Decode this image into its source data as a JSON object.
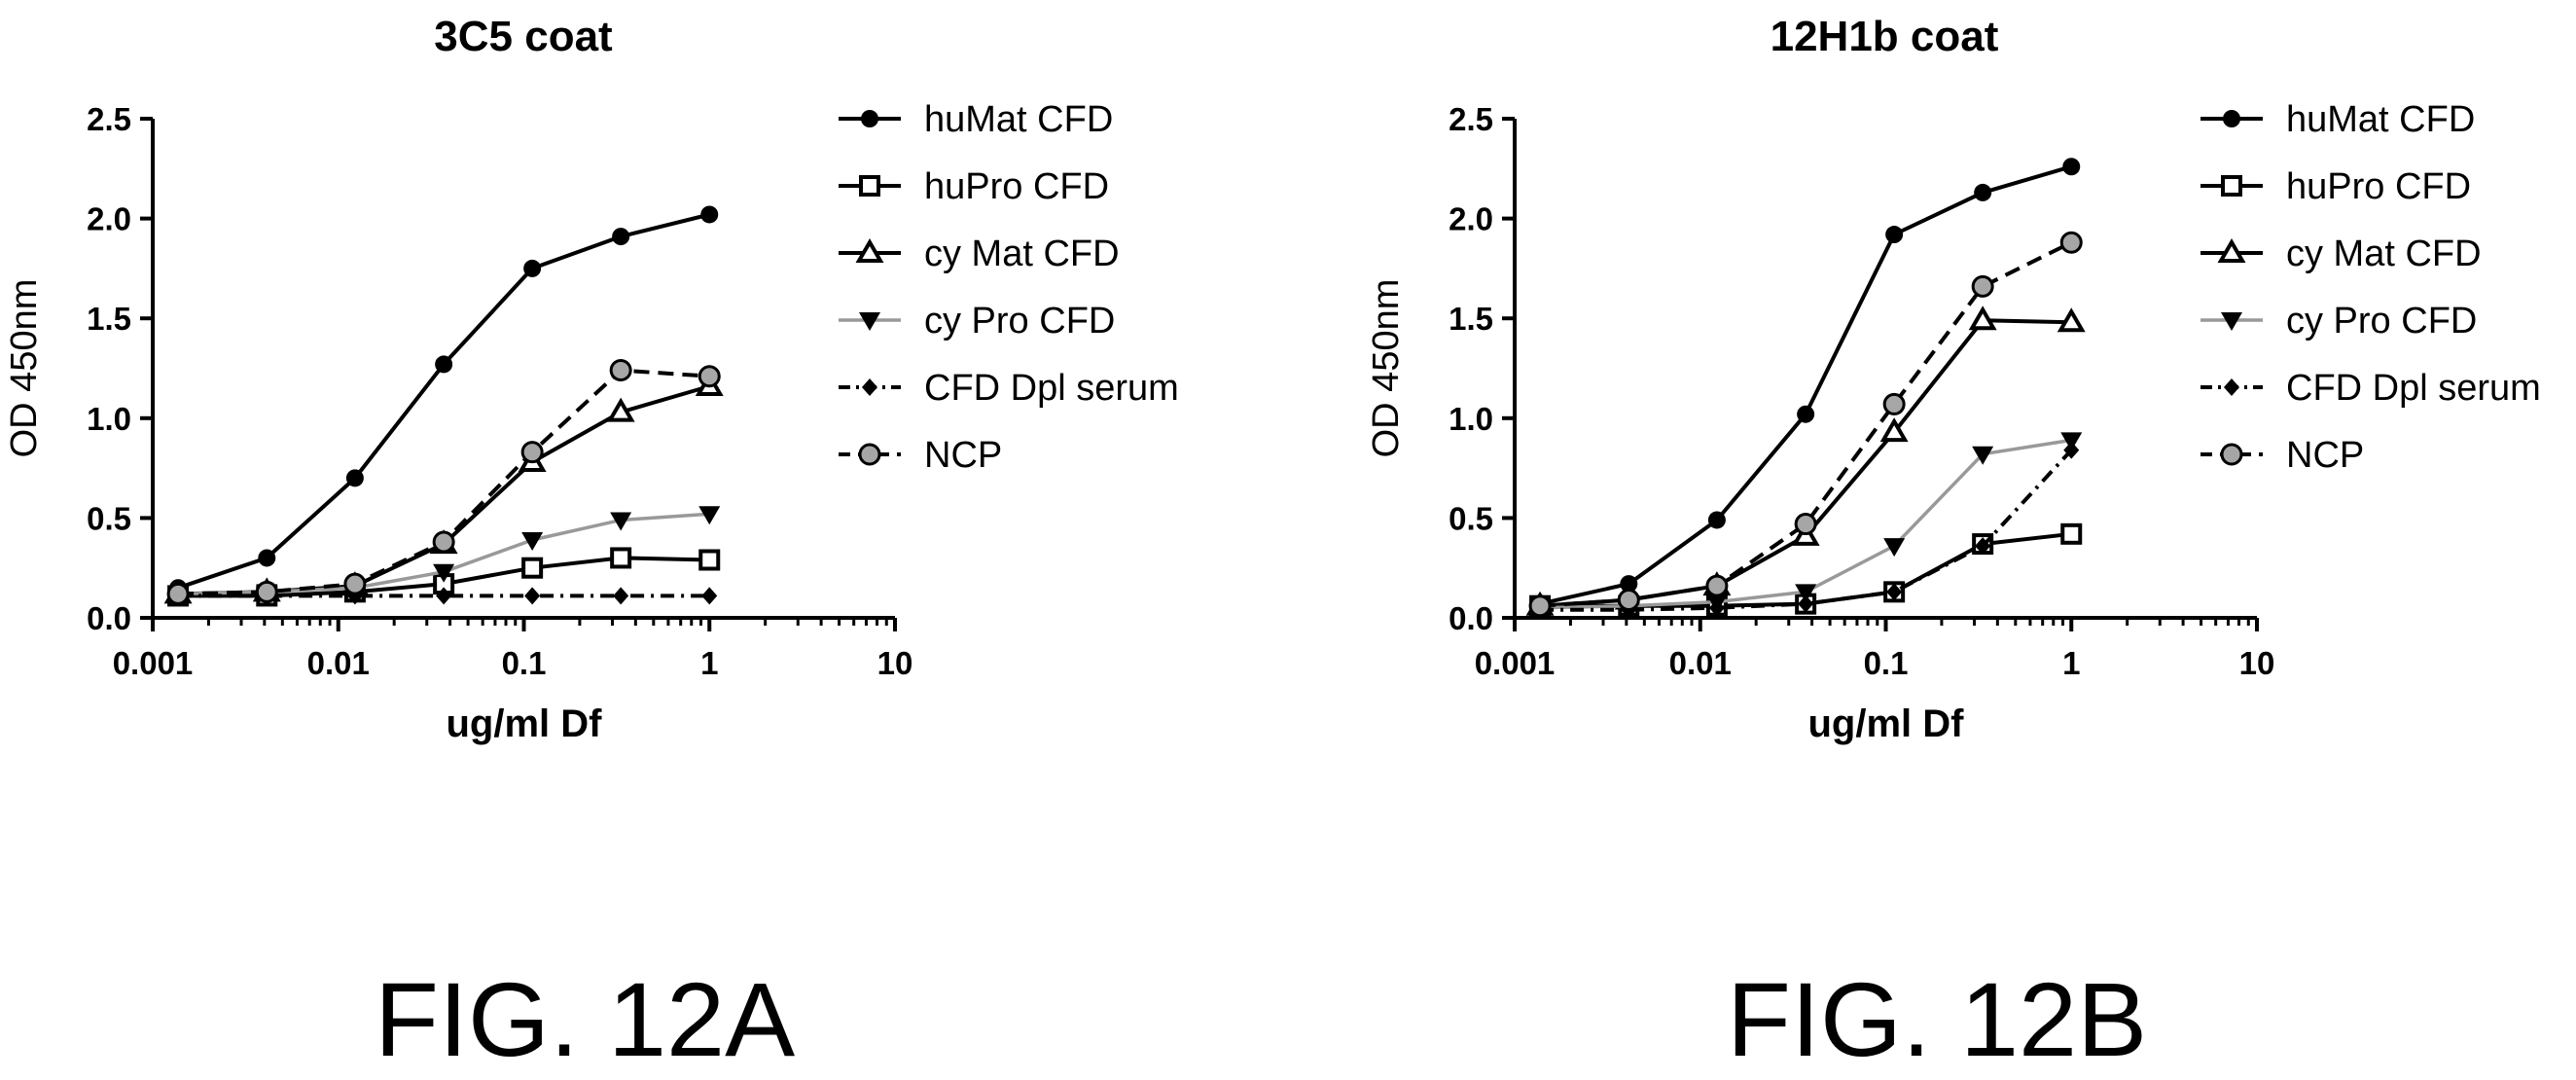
{
  "figure_labels": [
    "FIG. 12A",
    "FIG. 12B"
  ],
  "chart_data": [
    {
      "type": "line",
      "title": "3C5 coat",
      "xlabel": "ug/ml Df",
      "ylabel": "OD 450nm",
      "xscale": "log",
      "xlim": [
        0.001,
        10
      ],
      "ylim": [
        0,
        2.5
      ],
      "xticks": [
        "0.001",
        "0.01",
        "0.1",
        "1",
        "10"
      ],
      "yticks": [
        "0.0",
        "0.5",
        "1.0",
        "1.5",
        "2.0",
        "2.5"
      ],
      "x": [
        0.00137,
        0.00412,
        0.0123,
        0.037,
        0.111,
        0.333,
        1
      ],
      "grid": false,
      "legend": "right",
      "series": [
        {
          "name": "huMat CFD",
          "values": [
            0.15,
            0.3,
            0.7,
            1.27,
            1.75,
            1.91,
            2.02
          ],
          "marker": "circle-filled",
          "line": "solid",
          "color": "#000000"
        },
        {
          "name": "huPro CFD",
          "values": [
            0.11,
            0.11,
            0.13,
            0.17,
            0.25,
            0.3,
            0.29
          ],
          "marker": "square-open",
          "line": "solid",
          "color": "#000000"
        },
        {
          "name": "cy Mat CFD",
          "values": [
            0.12,
            0.13,
            0.16,
            0.37,
            0.78,
            1.03,
            1.16
          ],
          "marker": "triangle-up-open",
          "line": "solid",
          "color": "#000000"
        },
        {
          "name": "cy Pro CFD",
          "values": [
            0.12,
            0.13,
            0.15,
            0.23,
            0.39,
            0.49,
            0.52
          ],
          "marker": "triangle-down-filled",
          "line": "solid",
          "color": "#999999"
        },
        {
          "name": "CFD Dpl serum",
          "values": [
            0.11,
            0.11,
            0.11,
            0.11,
            0.11,
            0.11,
            0.11
          ],
          "marker": "diamond-filled",
          "line": "dashdot",
          "color": "#000000"
        },
        {
          "name": "NCP",
          "values": [
            0.12,
            0.13,
            0.17,
            0.38,
            0.83,
            1.24,
            1.21
          ],
          "marker": "circle-gray",
          "line": "dashed",
          "color": "#000000"
        }
      ]
    },
    {
      "type": "line",
      "title": "12H1b coat",
      "xlabel": "ug/ml Df",
      "ylabel": "OD 450nm",
      "xscale": "log",
      "xlim": [
        0.001,
        10
      ],
      "ylim": [
        0,
        2.5
      ],
      "xticks": [
        "0.001",
        "0.01",
        "0.1",
        "1",
        "10"
      ],
      "yticks": [
        "0.0",
        "0.5",
        "1.0",
        "1.5",
        "2.0",
        "2.5"
      ],
      "x": [
        0.00137,
        0.00412,
        0.0123,
        0.037,
        0.111,
        0.333,
        1
      ],
      "grid": false,
      "legend": "right",
      "series": [
        {
          "name": "huMat CFD",
          "values": [
            0.07,
            0.17,
            0.49,
            1.02,
            1.92,
            2.13,
            2.26
          ],
          "marker": "circle-filled",
          "line": "solid",
          "color": "#000000"
        },
        {
          "name": "huPro CFD",
          "values": [
            0.06,
            0.06,
            0.06,
            0.07,
            0.13,
            0.37,
            0.42
          ],
          "marker": "square-open",
          "line": "solid",
          "color": "#000000"
        },
        {
          "name": "cy Mat CFD",
          "values": [
            0.06,
            0.09,
            0.16,
            0.41,
            0.93,
            1.49,
            1.48
          ],
          "marker": "triangle-up-open",
          "line": "solid",
          "color": "#000000"
        },
        {
          "name": "cy Pro CFD",
          "values": [
            0.05,
            0.06,
            0.08,
            0.13,
            0.36,
            0.82,
            0.89
          ],
          "marker": "triangle-down-filled",
          "line": "solid",
          "color": "#999999"
        },
        {
          "name": "CFD Dpl serum",
          "values": [
            0.04,
            0.04,
            0.05,
            0.07,
            0.13,
            0.36,
            0.84
          ],
          "marker": "diamond-filled",
          "line": "dashdot",
          "color": "#000000"
        },
        {
          "name": "NCP",
          "values": [
            0.06,
            0.09,
            0.16,
            0.47,
            1.07,
            1.66,
            1.88
          ],
          "marker": "circle-gray",
          "line": "dashed",
          "color": "#000000"
        }
      ]
    }
  ]
}
